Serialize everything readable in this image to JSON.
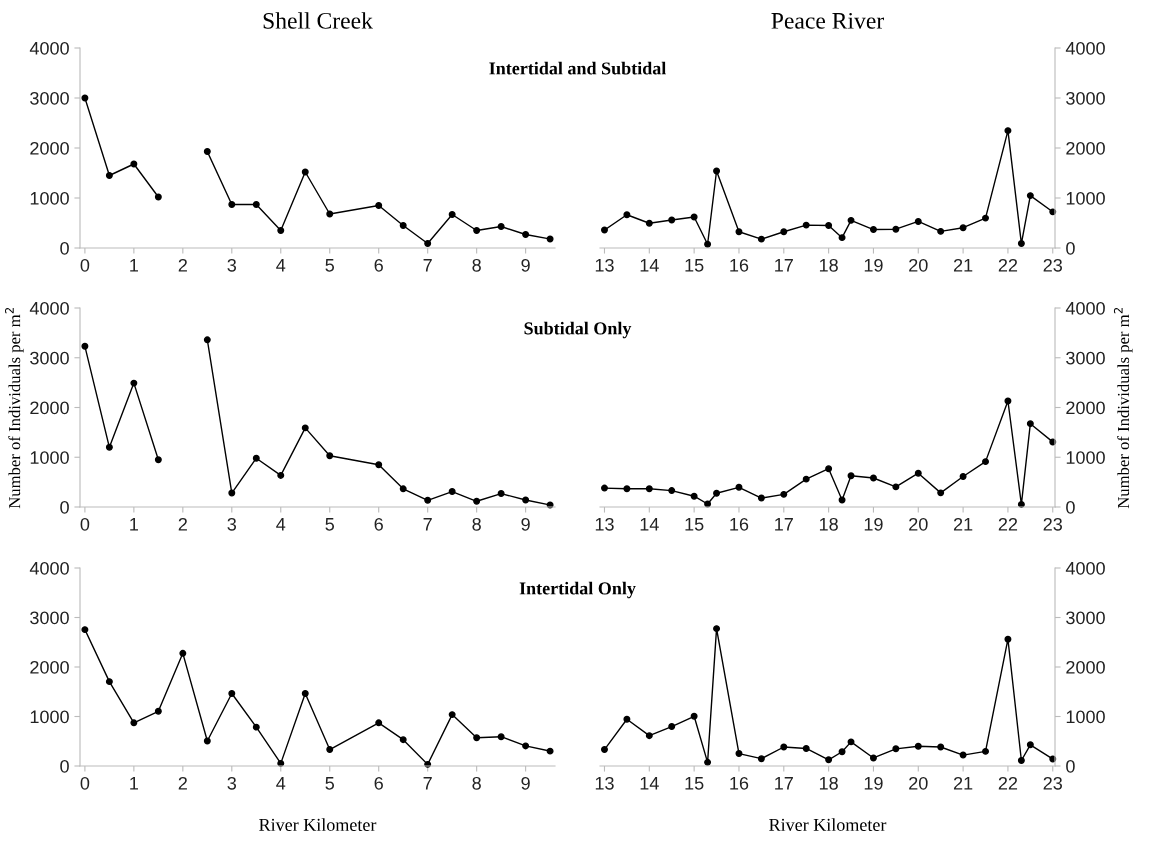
{
  "chart_data": [
    {
      "type": "line",
      "title": "Shell Creek",
      "subtitle": "Intertidal and Subtidal",
      "x": [
        0,
        0.5,
        1,
        1.5,
        2,
        2.5,
        3,
        3.5,
        4,
        4.5,
        5,
        6,
        6.5,
        7,
        7.5,
        8,
        8.5,
        9,
        9.5
      ],
      "series": [
        {
          "color": "#000000",
          "values": [
            3000,
            1450,
            1680,
            1020,
            null,
            1930,
            870,
            870,
            350,
            1520,
            680,
            850,
            450,
            90,
            670,
            350,
            430,
            270,
            180
          ]
        }
      ],
      "xlim": [
        -0.1,
        9.6
      ],
      "xticks": [
        0,
        1,
        2,
        3,
        4,
        5,
        6,
        7,
        8,
        9
      ],
      "ylim": [
        0,
        4000
      ],
      "yticks": [
        0,
        1000,
        2000,
        3000,
        4000
      ],
      "marker": "circle",
      "line_style": "solid",
      "grid": false,
      "legend": false
    },
    {
      "type": "line",
      "title": "Peace River",
      "x": [
        13,
        13.5,
        14,
        14.5,
        15,
        15.3,
        15.5,
        16,
        16.5,
        17,
        17.5,
        18,
        18.3,
        18.5,
        19,
        19.5,
        20,
        20.5,
        21,
        21.5,
        22,
        22.3,
        22.5,
        23
      ],
      "series": [
        {
          "color": "#000000",
          "axis": "y2",
          "values": [
            360,
            665,
            495,
            560,
            620,
            75,
            1540,
            325,
            177,
            325,
            458,
            450,
            207,
            553,
            369,
            376,
            531,
            332,
            406,
            598,
            2347,
            89,
            1048,
            723
          ]
        }
      ],
      "xlim": [
        12.9,
        23.05
      ],
      "xticks": [
        13,
        14,
        15,
        16,
        17,
        18,
        19,
        20,
        21,
        22,
        23
      ],
      "y2lim": [
        0,
        4000
      ],
      "y2ticks": [
        0,
        1000,
        2000,
        3000,
        4000
      ],
      "marker": "circle",
      "line_style": "solid",
      "grid": false,
      "legend": false
    },
    {
      "type": "line",
      "subtitle": "Subtidal Only",
      "ylabel": "Number of Individuals per m$^{2}$",
      "x": [
        0,
        0.5,
        1,
        1.5,
        2,
        2.5,
        3,
        3.5,
        4,
        4.5,
        5,
        6,
        6.5,
        7,
        7.5,
        8,
        8.5,
        9,
        9.5
      ],
      "series": [
        {
          "color": "#000000",
          "values": [
            3230,
            1200,
            2490,
            950,
            null,
            3360,
            280,
            980,
            635,
            1590,
            1030,
            850,
            365,
            135,
            310,
            115,
            270,
            140,
            40
          ]
        }
      ],
      "xlim": [
        -0.1,
        9.6
      ],
      "xticks": [
        0,
        1,
        2,
        3,
        4,
        5,
        6,
        7,
        8,
        9
      ],
      "ylim": [
        0,
        4000
      ],
      "yticks": [
        0,
        1000,
        2000,
        3000,
        4000
      ],
      "marker": "circle",
      "line_style": "solid",
      "grid": false,
      "legend": false
    },
    {
      "type": "line",
      "y2label": "Number of Individuals per m$^{2}$",
      "x": [
        13,
        13.5,
        14,
        14.5,
        15,
        15.3,
        15.5,
        16,
        16.5,
        17,
        17.5,
        18,
        18.3,
        18.5,
        19,
        19.5,
        20,
        20.5,
        21,
        21.5,
        22,
        22.3,
        22.5,
        23
      ],
      "series": [
        {
          "color": "#000000",
          "axis": "y2",
          "values": [
            380,
            366,
            366,
            330,
            217,
            60,
            277,
            396,
            180,
            254,
            560,
            770,
            142,
            628,
            583,
            404,
            680,
            284,
            613,
            912,
            2130,
            52,
            1675,
            1308
          ]
        }
      ],
      "xlim": [
        12.9,
        23.05
      ],
      "xticks": [
        13,
        14,
        15,
        16,
        17,
        18,
        19,
        20,
        21,
        22,
        23
      ],
      "y2lim": [
        0,
        4000
      ],
      "y2ticks": [
        0,
        1000,
        2000,
        3000,
        4000
      ],
      "marker": "circle",
      "line_style": "solid",
      "grid": false,
      "legend": false
    },
    {
      "type": "line",
      "subtitle": "Intertidal Only",
      "xlabel": "River Kilometer",
      "x": [
        0,
        0.5,
        1,
        1.5,
        2,
        2.5,
        3,
        3.5,
        4,
        4.5,
        5,
        6,
        6.5,
        7,
        7.5,
        8,
        8.5,
        9,
        9.5
      ],
      "series": [
        {
          "color": "#000000",
          "values": [
            2755,
            1704,
            872,
            1105,
            2276,
            506,
            1464,
            785,
            53,
            1464,
            333,
            872,
            532,
            33,
            1038,
            572,
            592,
            406,
            300
          ]
        }
      ],
      "xlim": [
        -0.1,
        9.6
      ],
      "xticks": [
        0,
        1,
        2,
        3,
        4,
        5,
        6,
        7,
        8,
        9
      ],
      "ylim": [
        0,
        4000
      ],
      "yticks": [
        0,
        1000,
        2000,
        3000,
        4000
      ],
      "marker": "circle",
      "line_style": "solid",
      "grid": false,
      "legend": false
    },
    {
      "type": "line",
      "xlabel": "River Kilometer",
      "x": [
        13,
        13.5,
        14,
        14.5,
        15,
        15.3,
        15.5,
        16,
        16.5,
        17,
        17.5,
        18,
        18.3,
        18.5,
        19,
        19.5,
        20,
        20.5,
        21,
        21.5,
        22,
        22.3,
        22.5,
        23
      ],
      "series": [
        {
          "color": "#000000",
          "axis": "y2",
          "values": [
            332,
            945,
            613,
            797,
            1004,
            74,
            2775,
            251,
            148,
            384,
            354,
            125,
            288,
            487,
            162,
            347,
            399,
            384,
            221,
            295,
            2561,
            111,
            428,
            140
          ]
        }
      ],
      "xlim": [
        12.9,
        23.05
      ],
      "xticks": [
        13,
        14,
        15,
        16,
        17,
        18,
        19,
        20,
        21,
        22,
        23
      ],
      "y2lim": [
        0,
        4000
      ],
      "y2ticks": [
        0,
        1000,
        2000,
        3000,
        4000
      ],
      "marker": "circle",
      "line_style": "solid",
      "grid": false,
      "legend": false
    }
  ]
}
